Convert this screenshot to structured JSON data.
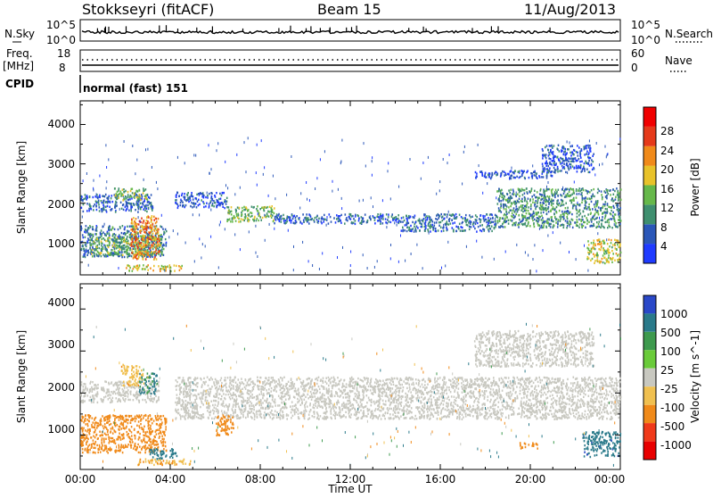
{
  "header": {
    "station": "Stokkseyri (fitACF)",
    "beam": "Beam 15",
    "date": "11/Aug/2013"
  },
  "strip_labels": {
    "nsky": "N.Sky",
    "nsky_top": "10^5",
    "nsky_bot": "10^0",
    "nsearch": "N.Search",
    "nsearch_top": "10^5",
    "nsearch_bot": "10^0",
    "freq": "Freq.",
    "freq_unit": "[MHz]",
    "freq_top": "18",
    "freq_bot": "8",
    "nave": "Nave",
    "nave_top": "60",
    "nave_bot": "0",
    "cpid": "CPID",
    "cpid_value": "normal (fast) 151"
  },
  "axes": {
    "ylabel": "Slant Range [km]",
    "yticks": [
      "1000",
      "2000",
      "3000",
      "4000"
    ],
    "xticks": [
      "00:00",
      "04:00",
      "08:00",
      "12:00",
      "16:00",
      "20:00",
      "00:00"
    ],
    "xlabel": "Time UT"
  },
  "colorbars": {
    "power": {
      "label": "Power [dB]",
      "ticks": [
        "4",
        "8",
        "12",
        "16",
        "20",
        "24",
        "28"
      ],
      "colors": [
        "#1f3bff",
        "#2b57b8",
        "#3f8f6f",
        "#66b84a",
        "#e8c22a",
        "#f08a1a",
        "#e53a1a",
        "#f00000"
      ]
    },
    "velocity": {
      "label": "Velocity [m s^-1]",
      "ticks": [
        "1000",
        "500",
        "100",
        "25",
        "-25",
        "-100",
        "-500",
        "-1000"
      ],
      "colors": [
        "#2a48c8",
        "#2a7a8a",
        "#3e9a4e",
        "#6acb3a",
        "#c8c8c0",
        "#f0c050",
        "#f08a1a",
        "#f03a1a",
        "#e80000"
      ]
    }
  },
  "chart_data": [
    {
      "type": "heatmap",
      "title": "Power",
      "xlabel": "Time UT",
      "ylabel": "Slant Range [km]",
      "xlim": [
        "00:00",
        "24:00"
      ],
      "ylim": [
        180,
        4600
      ],
      "colorbar": "Power [dB]",
      "colorbar_range": [
        0,
        30
      ],
      "regions": [
        {
          "t_start": 0.0,
          "t_end": 3.2,
          "range_min": 1800,
          "range_max": 2250,
          "power_db": 6
        },
        {
          "t_start": 1.5,
          "t_end": 3.0,
          "range_min": 2100,
          "range_max": 2400,
          "power_db": 14
        },
        {
          "t_start": 0.0,
          "t_end": 3.8,
          "range_min": 650,
          "range_max": 1450,
          "power_db": 8
        },
        {
          "t_start": 0.4,
          "t_end": 3.6,
          "range_min": 700,
          "range_max": 1200,
          "power_db": 13
        },
        {
          "t_start": 2.2,
          "t_end": 3.5,
          "range_min": 600,
          "range_max": 1700,
          "power_db": 22
        },
        {
          "t_start": 2.0,
          "t_end": 4.5,
          "range_min": 300,
          "range_max": 450,
          "power_db": 18
        },
        {
          "t_start": 4.2,
          "t_end": 6.5,
          "range_min": 1900,
          "range_max": 2300,
          "power_db": 5
        },
        {
          "t_start": 6.5,
          "t_end": 8.6,
          "range_min": 1550,
          "range_max": 1950,
          "power_db": 13
        },
        {
          "t_start": 8.6,
          "t_end": 14.2,
          "range_min": 1500,
          "range_max": 1750,
          "power_db": 6
        },
        {
          "t_start": 14.2,
          "t_end": 18.5,
          "range_min": 1300,
          "range_max": 1750,
          "power_db": 7
        },
        {
          "t_start": 18.5,
          "t_end": 24.0,
          "range_min": 1400,
          "range_max": 2400,
          "power_db": 10
        },
        {
          "t_start": 17.5,
          "t_end": 21.0,
          "range_min": 2650,
          "range_max": 2850,
          "power_db": 4
        },
        {
          "t_start": 20.5,
          "t_end": 22.8,
          "range_min": 2800,
          "range_max": 3500,
          "power_db": 5
        },
        {
          "t_start": 22.5,
          "t_end": 24.0,
          "range_min": 500,
          "range_max": 1100,
          "power_db": 16
        }
      ]
    },
    {
      "type": "heatmap",
      "title": "Velocity",
      "xlabel": "Time UT",
      "ylabel": "Slant Range [km]",
      "xlim": [
        "00:00",
        "24:00"
      ],
      "ylim": [
        180,
        4600
      ],
      "colorbar": "Velocity [m s^-1]",
      "colorbar_range": [
        -1000,
        1000
      ],
      "regions": [
        {
          "t_start": 0.0,
          "t_end": 3.5,
          "range_min": 1800,
          "range_max": 2300,
          "velocity": 0
        },
        {
          "t_start": 1.8,
          "t_end": 2.8,
          "range_min": 2200,
          "range_max": 2700,
          "velocity": -80
        },
        {
          "t_start": 2.6,
          "t_end": 3.4,
          "range_min": 2000,
          "range_max": 2500,
          "velocity": 110
        },
        {
          "t_start": 0.0,
          "t_end": 3.8,
          "range_min": 600,
          "range_max": 1500,
          "velocity": -300
        },
        {
          "t_start": 3.0,
          "t_end": 4.3,
          "range_min": 450,
          "range_max": 700,
          "velocity": 300
        },
        {
          "t_start": 2.5,
          "t_end": 5.0,
          "range_min": 300,
          "range_max": 450,
          "velocity": -90
        },
        {
          "t_start": 4.2,
          "t_end": 24.0,
          "range_min": 1400,
          "range_max": 2400,
          "velocity": 0
        },
        {
          "t_start": 6.0,
          "t_end": 6.8,
          "range_min": 1000,
          "range_max": 1500,
          "velocity": -300
        },
        {
          "t_start": 17.5,
          "t_end": 22.8,
          "range_min": 2650,
          "range_max": 3500,
          "velocity": 0
        },
        {
          "t_start": 19.5,
          "t_end": 20.3,
          "range_min": 700,
          "range_max": 850,
          "velocity": -300
        },
        {
          "t_start": 22.3,
          "t_end": 24.0,
          "range_min": 500,
          "range_max": 1100,
          "velocity": 400
        }
      ]
    }
  ]
}
